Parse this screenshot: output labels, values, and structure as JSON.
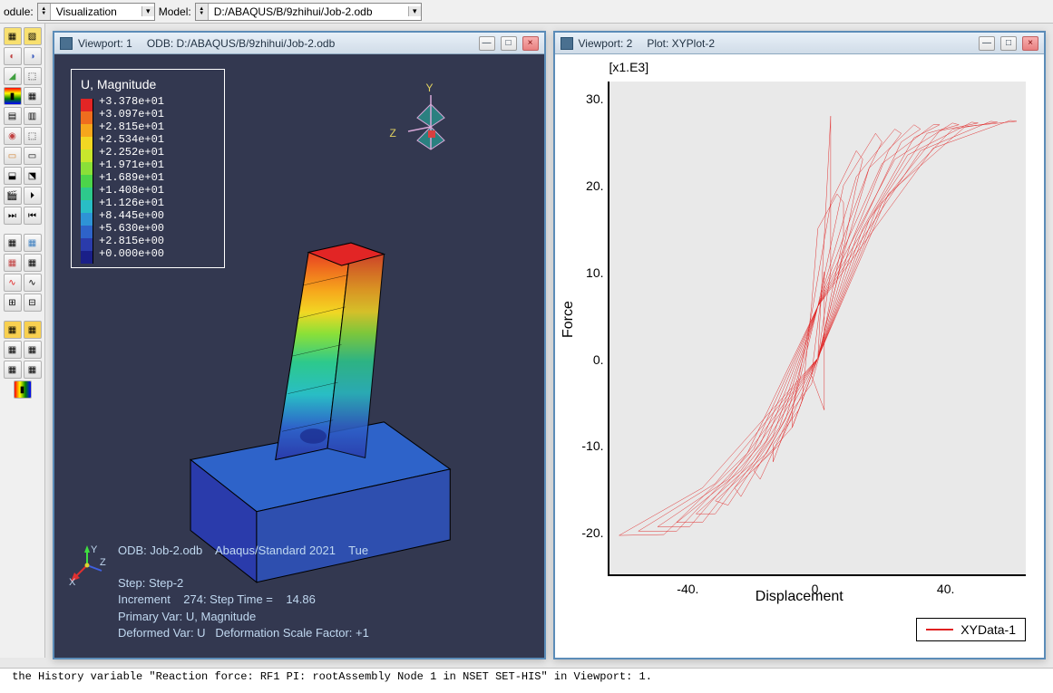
{
  "topbar": {
    "module_label": "odule:",
    "module_value": "Visualization",
    "model_label": "Model:",
    "model_value": "D:/ABAQUS/B/9zhihui/Job-2.odb"
  },
  "viewport1": {
    "title_prefix": "Viewport: 1",
    "title_odb": "ODB: D:/ABAQUS/B/9zhihui/Job-2.odb",
    "legend_title": "U, Magnitude",
    "legend_values": [
      "+3.378e+01",
      "+3.097e+01",
      "+2.815e+01",
      "+2.534e+01",
      "+2.252e+01",
      "+1.971e+01",
      "+1.689e+01",
      "+1.408e+01",
      "+1.126e+01",
      "+8.445e+00",
      "+5.630e+00",
      "+2.815e+00",
      "+0.000e+00"
    ],
    "legend_colors": [
      "#e22525",
      "#ef6d1e",
      "#f6a61c",
      "#f2d723",
      "#c8e62c",
      "#8ae038",
      "#4cd44a",
      "#2dc98c",
      "#29bdc5",
      "#2e93d6",
      "#2e63c9",
      "#2a3bab",
      "#1a1f88"
    ],
    "info_line1": "ODB: Job-2.odb    Abaqus/Standard 2021    Tue",
    "info_step": "Step: Step-2",
    "info_increment": "Increment    274: Step Time =    14.86",
    "info_primary": "Primary Var: U, Magnitude",
    "info_deformed": "Deformed Var: U   Deformation Scale Factor: +1",
    "triad": {
      "y": "Y",
      "z": "Z",
      "x": "X"
    }
  },
  "viewport2": {
    "title_prefix": "Viewport: 2",
    "title_plot": "Plot: XYPlot-2",
    "chart": {
      "type": "line",
      "multiplier_label": "[x1.E3]",
      "y_axis_label": "Force",
      "x_axis_label": "Displacement",
      "legend_label": "XYData-1",
      "line_color": "#e02020",
      "background_color": "#e9e9e9",
      "xlim": [
        -65,
        65
      ],
      "ylim": [
        -25,
        32
      ],
      "xticks": [
        -40,
        0,
        40
      ],
      "yticks": [
        -20,
        -10,
        0,
        10,
        20,
        30
      ],
      "series_paths": [
        "M -8 -6 L -2 -3 L 1 1 L 4 7 L 8 14 L 8 18 L 6 19 L 0 15 L -2 6 L -5 -5 L -8 -8 L -8 -6 Z",
        "M -14 -10 L -6 -6 L 0 0 L 6 9 L 12 20 L 14 23 L 12 24 L 4 18 L -2 5 L -8 -6 L -14 -12 L -14 -10 Z",
        "M -20 -13 L -8 -8 L 0 0 L 8 12 L 16 22 L 20 25 L 18 26 L 8 20 L 0 6 L -8 -6 L -18 -14 L -20 -13 Z",
        "M -26 -15 L -12 -10 L 0 0 L 10 13 L 22 24 L 26 26 L 24 26.5 L 12 21 L 0 6 L -10 -7 L -24 -16 L -26 -15 Z",
        "M -32 -16.5 L -16 -11 L 0 0 L 12 14 L 26 25 L 32 26.5 L 30 27 L 16 22 L 0 6 L -12 -8 L -28 -17 L -32 -16.5 Z",
        "M -38 -18 L -20 -12 L 0 0 L 14 15 L 30 25.5 L 38 27 L 36 27 L 20 22.5 L 0 6 L -14 -9 L -32 -18 L -38 -18 Z",
        "M -44 -19 L -24 -13 L 0 0 L 16 16 L 34 26 L 44 27 L 42 27.2 L 24 23 L 0 6 L -16 -9.5 L -36 -19 L -44 -19 Z",
        "M -50 -19.5 L -28 -14 L 0 0 L 18 17 L 38 26.3 L 50 27.2 L 48 27.3 L 28 23.5 L 0 6 L -18 -10 L -40 -19.5 L -50 -19.5 Z",
        "M -56 -20 L -32 -14.5 L 0 0 L 20 18 L 42 26.5 L 56 27.3 L 54 27.4 L 32 24 L 0 6 L -20 -10.5 L -44 -20 L -56 -20 Z",
        "M -62 -20.5 L -36 -15 L 0 0 L 22 19 L 46 26.8 L 62 27.4 L 60 27.5 L 36 24.3 L 0 6 L -22 -11 L -48 -20.4 L -62 -20.5 Z",
        "M 0 0 L 4 28 L 4 10 L 0 0",
        "M -2 -2 L 2 10 L 2 -6 L -2 -2"
      ]
    }
  },
  "status": {
    "line1": " the History variable \"Reaction force: RF1 PI: rootAssembly Node 1 in NSET SET-HIS\" in Viewport: 1."
  }
}
